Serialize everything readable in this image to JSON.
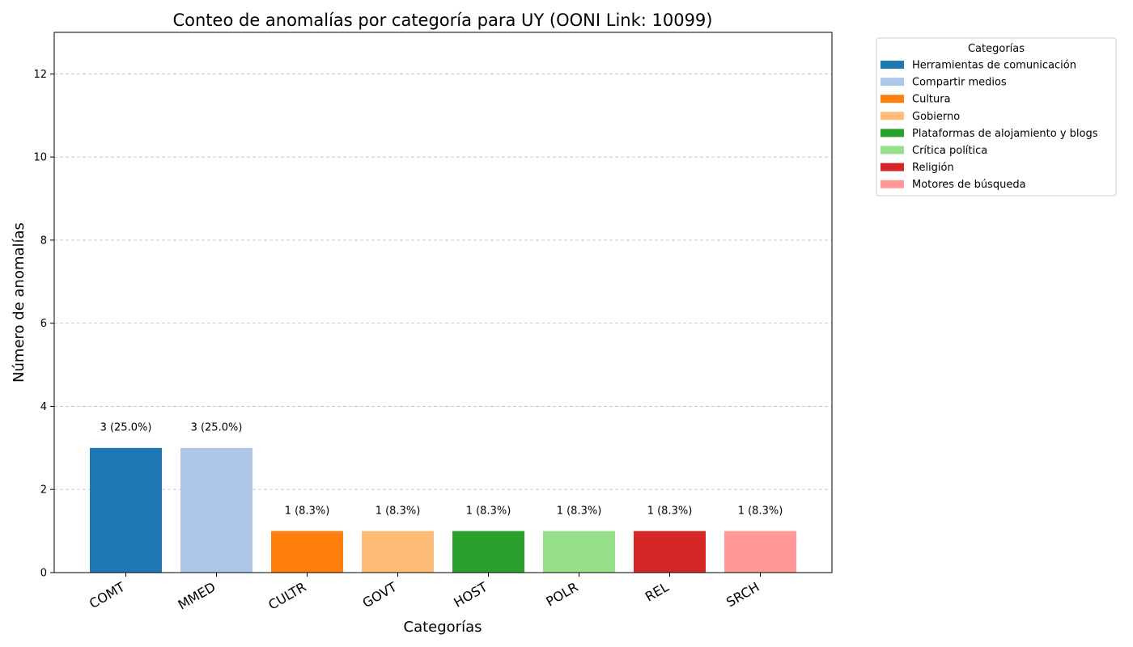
{
  "chart_data": {
    "type": "bar",
    "title": "Conteo de anomalías por categoría para UY (OONI Link: 10099)",
    "xlabel": "Categorías",
    "ylabel": "Número de anomalías",
    "ylim": [
      0,
      13
    ],
    "yticks": [
      0,
      2,
      4,
      6,
      8,
      10,
      12
    ],
    "grid": "y-dashed",
    "categories": [
      "COMT",
      "MMED",
      "CULTR",
      "GOVT",
      "HOST",
      "POLR",
      "REL",
      "SRCH"
    ],
    "values": [
      3,
      3,
      1,
      1,
      1,
      1,
      1,
      1
    ],
    "bar_labels": [
      "3 (25.0%)",
      "3 (25.0%)",
      "1 (8.3%)",
      "1 (8.3%)",
      "1 (8.3%)",
      "1 (8.3%)",
      "1 (8.3%)",
      "1 (8.3%)"
    ],
    "colors": [
      "#1f77b4",
      "#aec7e8",
      "#ff7f0e",
      "#ffbb78",
      "#2ca02c",
      "#98df8a",
      "#d62728",
      "#ff9896"
    ],
    "legend": {
      "title": "Categorías",
      "placement": "outside-top-right",
      "entries": [
        "Herramientas de comunicación",
        "Compartir medios",
        "Cultura",
        "Gobierno",
        "Plataformas de alojamiento y blogs",
        "Crítica política",
        "Religión",
        "Motores de búsqueda"
      ]
    }
  }
}
